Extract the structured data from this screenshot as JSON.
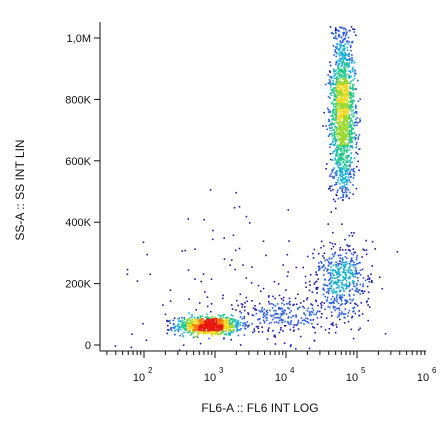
{
  "chart_data": {
    "type": "scatter",
    "xlabel": "FL6-A :: FL6 INT LOG",
    "ylabel": "SS-A :: SS INT LIN",
    "x_scale": "log",
    "y_scale": "linear",
    "xlim": [
      30,
      1000000
    ],
    "ylim": [
      -5000,
      1040000
    ],
    "grid": false,
    "x_ticks": [
      {
        "value": 100,
        "label": "10",
        "exp": "2"
      },
      {
        "value": 1000,
        "label": "10",
        "exp": "3"
      },
      {
        "value": 10000,
        "label": "10",
        "exp": "4"
      },
      {
        "value": 100000,
        "label": "10",
        "exp": "5"
      },
      {
        "value": 1000000,
        "label": "10",
        "exp": "6"
      }
    ],
    "y_ticks": [
      {
        "value": 0,
        "label": "0"
      },
      {
        "value": 200000,
        "label": "200K"
      },
      {
        "value": 400000,
        "label": "400K"
      },
      {
        "value": 600000,
        "label": "600K"
      },
      {
        "value": 800000,
        "label": "800K"
      },
      {
        "value": 1000000,
        "label": "1,0M"
      }
    ],
    "colormap": [
      "#1a1aa8",
      "#2a5ce0",
      "#19b0d6",
      "#22c98a",
      "#9ad92c",
      "#f2d81e",
      "#ff7a10",
      "#e81a10"
    ],
    "populations": [
      {
        "x_center": 800,
        "x_log_sigma": 0.23,
        "y_center": 65000,
        "y_sigma": 15000,
        "count": 900
      },
      {
        "x_center": 62000,
        "x_log_sigma": 0.09,
        "y_center": 760000,
        "y_sigma": 140000,
        "y_min": 470000,
        "y_max": 1040000,
        "count": 1500
      },
      {
        "x_center": 60000,
        "x_log_sigma": 0.18,
        "y_center": 210000,
        "y_sigma": 65000,
        "count": 500
      },
      {
        "x_center": 9000,
        "x_log_sigma": 0.35,
        "y_center": 100000,
        "y_sigma": 30000,
        "count": 220
      },
      {
        "x_center": 3000,
        "x_log_sigma": 0.9,
        "y_center": 160000,
        "y_sigma": 150000,
        "count": 160
      }
    ]
  }
}
